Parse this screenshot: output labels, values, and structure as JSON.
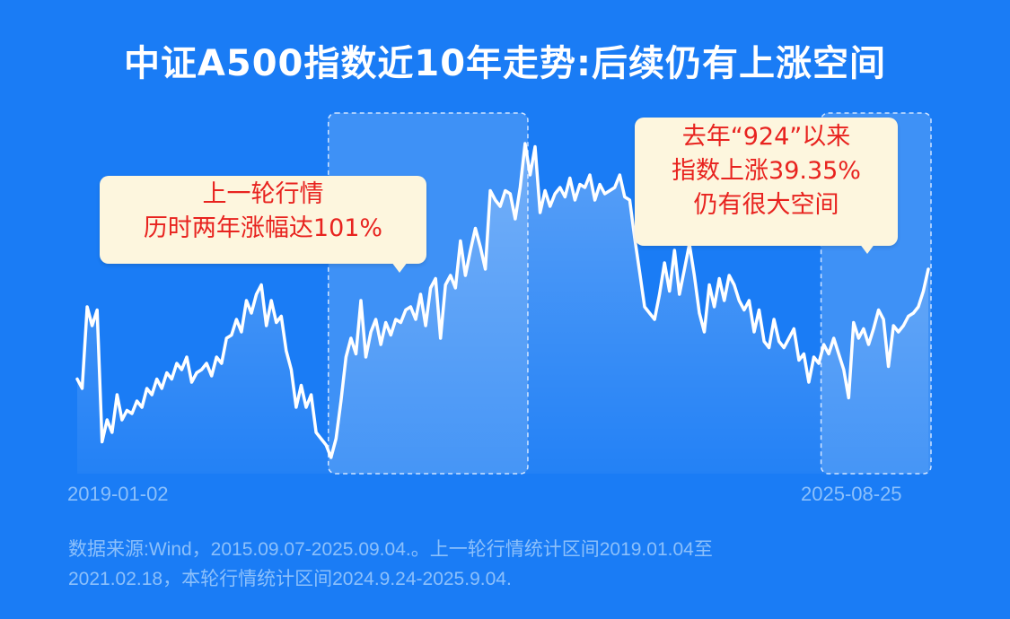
{
  "title": "中证A500指数近10年走势:后续仍有上涨空间",
  "colors": {
    "background": "#1a7cf5",
    "line": "#ffffff",
    "callout_bg": "#fdf6de",
    "callout_text": "#e8231f",
    "muted_text": "#8cc0fb"
  },
  "callouts": {
    "left": [
      "上一轮行情",
      "历时两年涨幅达101%"
    ],
    "right": [
      "去年“924”以来",
      "指数上涨39.35%",
      "仍有很大空间"
    ]
  },
  "x_labels": {
    "start": "2019-01-02",
    "end": "2025-08-25"
  },
  "footnote": {
    "line1": "数据来源:Wind，2015.09.07-2025.09.04.。上一轮行情统计区间2019.01.04至",
    "line2": "2021.02.18，本轮行情统计区间2024.9.24-2025.9.04."
  },
  "chart_data": {
    "type": "area",
    "title": "中证A500指数近10年走势:后续仍有上涨空间",
    "xlabel": "",
    "ylabel": "",
    "x_range": [
      "2019-01-02",
      "2025-08-25"
    ],
    "grid": false,
    "y_axis_shown": false,
    "note": "no y-axis printed; values are relative index levels read from line height (0 = lowest drawn, 100 = highest)",
    "series": [
      {
        "values": [
          25,
          22,
          48,
          42,
          47,
          5,
          12,
          8,
          20,
          12,
          15,
          14,
          18,
          16,
          22,
          20,
          25,
          22,
          27,
          25,
          30,
          28,
          32,
          24,
          27,
          28,
          30,
          26,
          32,
          30,
          38,
          39,
          44,
          40,
          50,
          46,
          52,
          55,
          42,
          50,
          43,
          45,
          34,
          28,
          16,
          23,
          16,
          20,
          8,
          6,
          4,
          0,
          6,
          18,
          32,
          38,
          33,
          50,
          32,
          40,
          44,
          36,
          43,
          39,
          44,
          43,
          47,
          48,
          44,
          52,
          42,
          54,
          57,
          38,
          55,
          58,
          54,
          69,
          58,
          66,
          73,
          67,
          60,
          85,
          82,
          80,
          85,
          84,
          76,
          86,
          100,
          90,
          99,
          78,
          85,
          80,
          84,
          86,
          83,
          89,
          82,
          87,
          86,
          90,
          82,
          87,
          84,
          85,
          86,
          90,
          83,
          82,
          70,
          59,
          48,
          46,
          44,
          52,
          62,
          53,
          66,
          52,
          60,
          68,
          58,
          46,
          40,
          55,
          48,
          57,
          50,
          58,
          55,
          50,
          47,
          50,
          40,
          47,
          37,
          35,
          44,
          37,
          35,
          38,
          41,
          31,
          33,
          24,
          32,
          30,
          36,
          33,
          38,
          33,
          28,
          19,
          43,
          38,
          41,
          36,
          41,
          47,
          44,
          29,
          42,
          40,
          42,
          45,
          46,
          48,
          53,
          60
        ]
      }
    ],
    "highlight_ranges": [
      {
        "start_index": 51,
        "end_index": 90
      },
      {
        "start_index": 150,
        "end_index": 171
      }
    ]
  }
}
